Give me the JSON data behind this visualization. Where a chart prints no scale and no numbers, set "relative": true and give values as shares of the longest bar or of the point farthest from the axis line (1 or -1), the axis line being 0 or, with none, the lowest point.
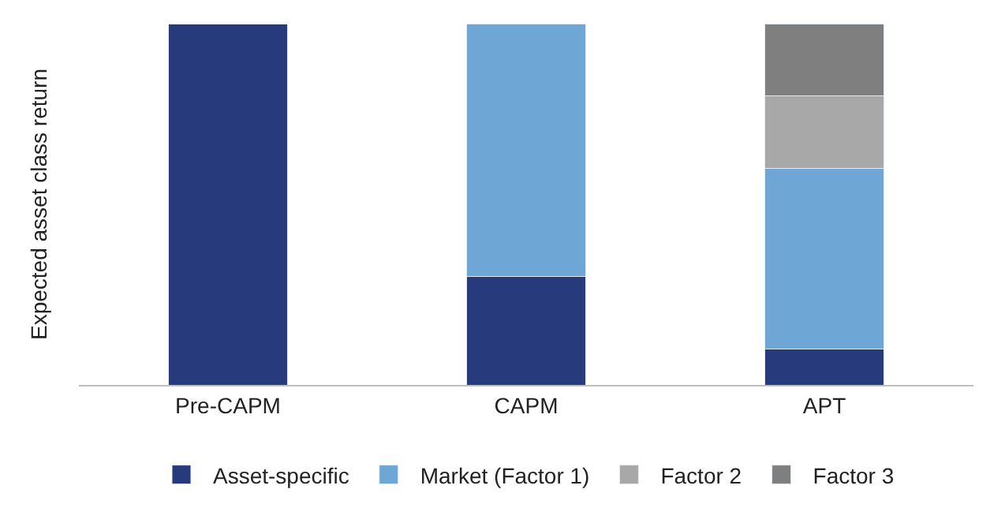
{
  "chart_data": {
    "type": "bar",
    "stacked": true,
    "relative": true,
    "ylabel": "Expected asset class return",
    "categories": [
      "Pre-CAPM",
      "CAPM",
      "APT"
    ],
    "series": [
      {
        "name": "Asset-specific",
        "color": "#263a7c",
        "values": [
          1,
          0.3,
          0.1
        ]
      },
      {
        "name": "Market (Factor 1)",
        "color": "#6ea6d6",
        "values": [
          null,
          0.7,
          0.5
        ]
      },
      {
        "name": "Factor 2",
        "color": "#a8a8a8",
        "values": [
          null,
          null,
          0.2
        ]
      },
      {
        "name": "Factor 3",
        "color": "#7f7f7f",
        "values": [
          null,
          null,
          0.2
        ]
      }
    ],
    "legend": "bottom"
  }
}
